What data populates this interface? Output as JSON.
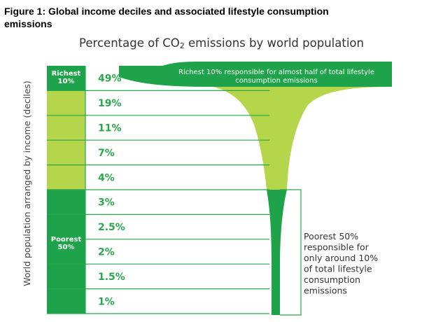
{
  "figure_title_line1": "Figure 1: Global income deciles and associated lifestyle consumption",
  "figure_title_line2": "emissions",
  "chart_title_pre": "Percentage of CO",
  "chart_title_sub": "2",
  "chart_title_post": " emissions by world population",
  "colors": {
    "dark_green": "#1fa34a",
    "light_green": "#b5d54a",
    "label_green": "#27a84a"
  },
  "chart_data": {
    "type": "bar",
    "title": "Percentage of CO2 emissions by world population",
    "ylabel": "World population arranged by income (deciles)",
    "categories": [
      "Richest 10%",
      "",
      "",
      "",
      "",
      "",
      "",
      "",
      "",
      ""
    ],
    "values": [
      49,
      19,
      11,
      7,
      4,
      3,
      2.5,
      2,
      1.5,
      1
    ],
    "value_labels": [
      "49%",
      "19%",
      "11%",
      "7%",
      "4%",
      "3%",
      "2.5%",
      "2%",
      "1.5%",
      "1%"
    ],
    "group_labels": {
      "richest": [
        "Richest",
        "10%"
      ],
      "poorest": [
        "Poorest",
        "50%"
      ]
    },
    "annotations": {
      "richest": [
        "Richest 10% responsible for almost half of total lifestyle",
        "consumption emissions"
      ],
      "poorest": [
        "Poorest 50%",
        "responsible for",
        "only around 10%",
        "of total lifestyle",
        "consumption",
        "emissions"
      ]
    }
  }
}
